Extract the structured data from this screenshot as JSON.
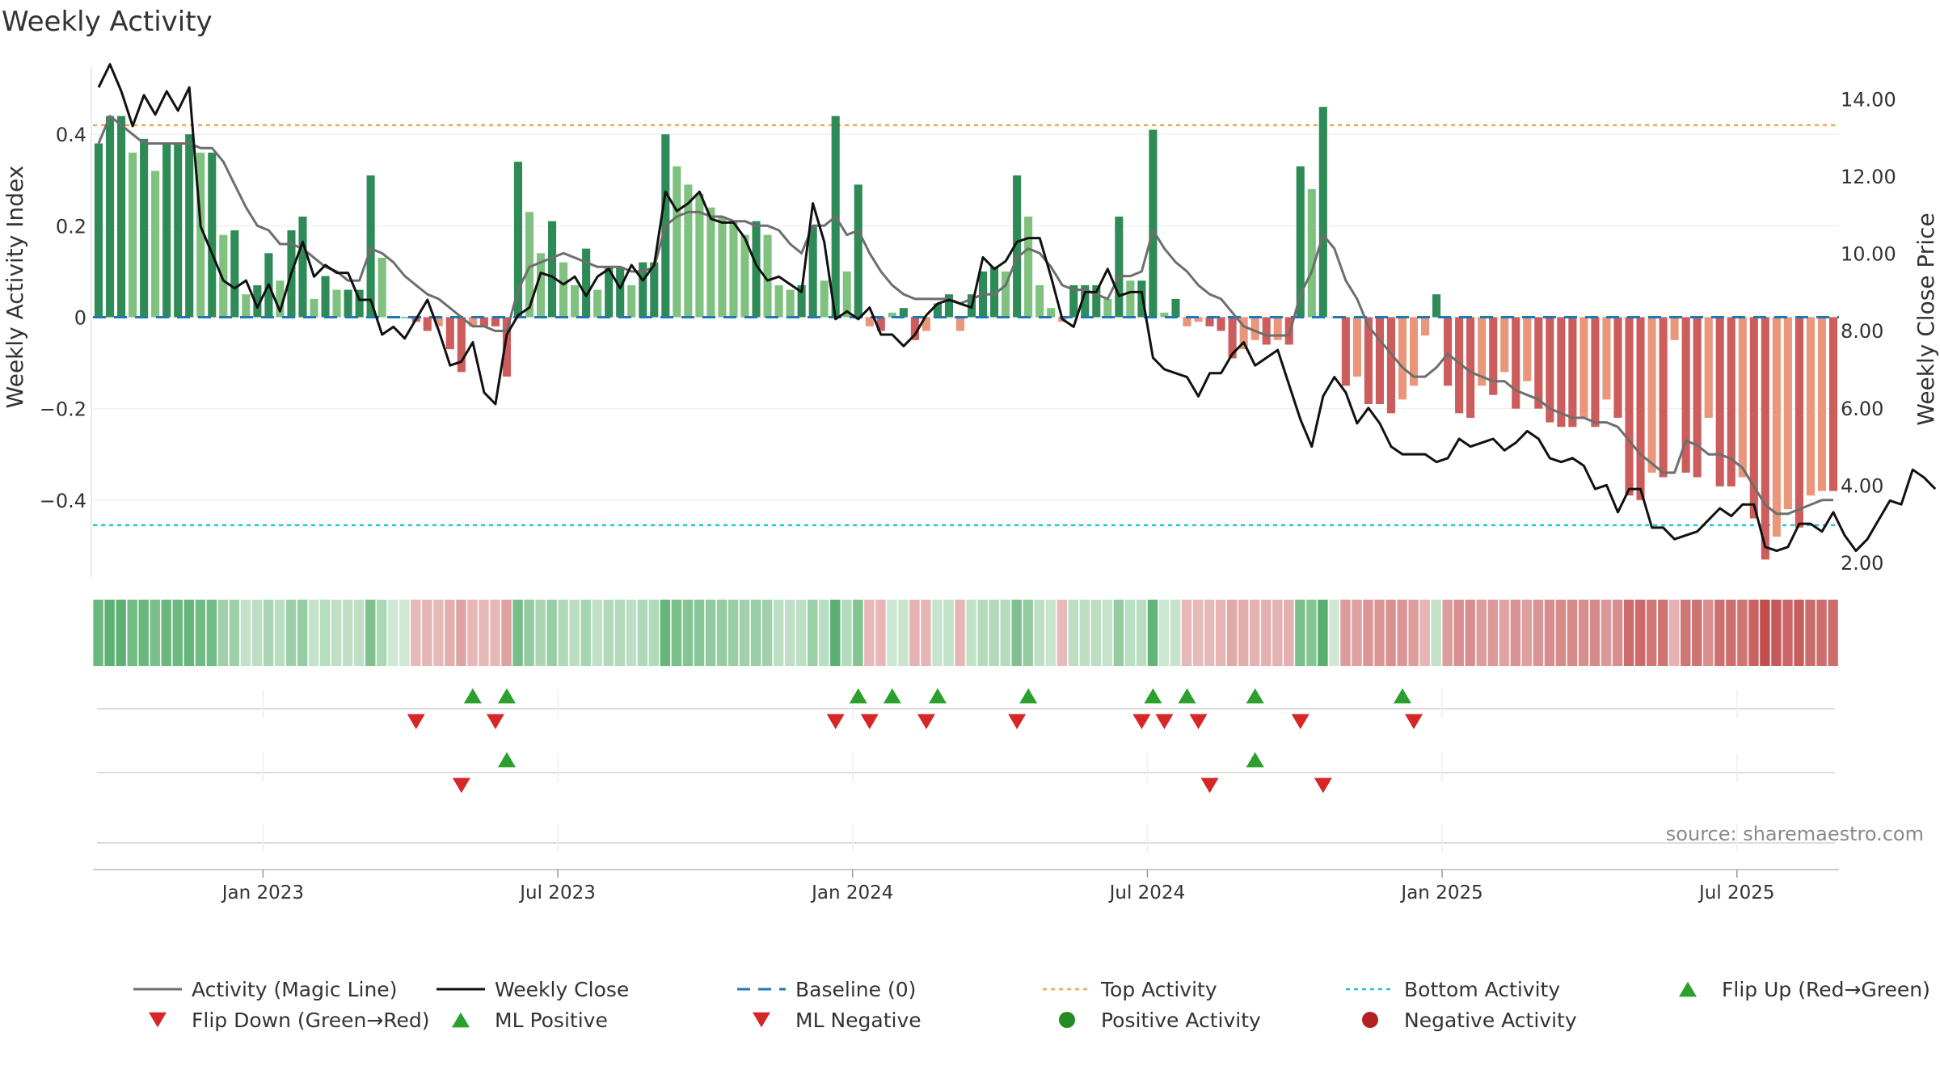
{
  "chart_data": {
    "type": "bar",
    "title": "Weekly Activity",
    "ylabel": "Weekly Activity Index",
    "y2label": "Weekly Close Price",
    "ylim": [
      -0.57,
      0.57
    ],
    "y2lim": [
      1.6,
      15.1
    ],
    "y_ticks": [
      {
        "v": 0.4,
        "label": "0.4"
      },
      {
        "v": 0.2,
        "label": "0.2"
      },
      {
        "v": 0,
        "label": "0"
      },
      {
        "v": -0.2,
        "label": "−0.2"
      },
      {
        "v": -0.4,
        "label": "−0.4"
      }
    ],
    "y2_ticks": [
      {
        "v": 14,
        "label": "14.00"
      },
      {
        "v": 12,
        "label": "12.00"
      },
      {
        "v": 10,
        "label": "10.00"
      },
      {
        "v": 8,
        "label": "8.00"
      },
      {
        "v": 6,
        "label": "6.00"
      },
      {
        "v": 4,
        "label": "4.00"
      },
      {
        "v": 2,
        "label": "2.00"
      }
    ],
    "x_ticks": [
      {
        "week": 14.5,
        "label": "Jan 2023"
      },
      {
        "week": 40.5,
        "label": "Jul 2023"
      },
      {
        "week": 66.5,
        "label": "Jan 2024"
      },
      {
        "week": 92.5,
        "label": "Jul 2024"
      },
      {
        "week": 118.5,
        "label": "Jan 2025"
      },
      {
        "week": 144.5,
        "label": "Jul 2025"
      }
    ],
    "top_activity": 0.42,
    "bottom_activity": -0.455,
    "baseline": 0,
    "activity_index": [
      0.38,
      0.44,
      0.44,
      0.36,
      0.39,
      0.32,
      0.38,
      0.38,
      0.4,
      0.36,
      0.36,
      0.18,
      0.19,
      0.05,
      0.07,
      0.14,
      0.08,
      0.19,
      0.22,
      0.04,
      0.09,
      0.06,
      0.06,
      0.06,
      0.31,
      0.13,
      0,
      0,
      -0.01,
      -0.03,
      -0.02,
      -0.07,
      -0.12,
      -0.02,
      -0.02,
      -0.02,
      -0.13,
      0.34,
      0.23,
      0.14,
      0.21,
      0.12,
      0.07,
      0.15,
      0.06,
      0.11,
      0.11,
      0.07,
      0.12,
      0.12,
      0.4,
      0.33,
      0.29,
      0.27,
      0.24,
      0.22,
      0.21,
      0.18,
      0.21,
      0.18,
      0.07,
      0.06,
      0.07,
      0.2,
      0.08,
      0.44,
      0.1,
      0.29,
      -0.02,
      -0.03,
      0.01,
      0.02,
      -0.05,
      -0.03,
      0.03,
      0.05,
      -0.03,
      0.05,
      0.1,
      0.11,
      0.1,
      0.31,
      0.22,
      0.07,
      0.02,
      -0.01,
      0.07,
      0.07,
      0.07,
      0.04,
      0.22,
      0.08,
      0.08,
      0.41,
      0.01,
      0.04,
      -0.02,
      -0.01,
      -0.02,
      -0.03,
      -0.09,
      -0.07,
      -0.05,
      -0.06,
      -0.05,
      -0.06,
      0.33,
      0.28,
      0.46,
      0,
      -0.15,
      -0.13,
      -0.19,
      -0.19,
      -0.21,
      -0.18,
      -0.15,
      -0.04,
      0.05,
      -0.15,
      -0.21,
      -0.22,
      -0.15,
      -0.17,
      -0.12,
      -0.2,
      -0.14,
      -0.2,
      -0.23,
      -0.24,
      -0.24,
      -0.22,
      -0.24,
      -0.18,
      -0.22,
      -0.39,
      -0.4,
      -0.34,
      -0.35,
      -0.05,
      -0.34,
      -0.35,
      -0.22,
      -0.37,
      -0.37,
      -0.35,
      -0.44,
      -0.53,
      -0.48,
      -0.42,
      -0.46,
      -0.39,
      -0.38,
      -0.38
    ],
    "magic_line": [
      0.38,
      0.44,
      0.42,
      0.4,
      0.38,
      0.38,
      0.38,
      0.38,
      0.38,
      0.37,
      0.37,
      0.34,
      0.29,
      0.24,
      0.2,
      0.19,
      0.16,
      0.16,
      0.15,
      0.13,
      0.11,
      0.1,
      0.08,
      0.08,
      0.15,
      0.14,
      0.12,
      0.09,
      0.07,
      0.05,
      0.04,
      0.02,
      0,
      -0.02,
      -0.02,
      -0.03,
      -0.03,
      0.06,
      0.11,
      0.12,
      0.13,
      0.14,
      0.13,
      0.12,
      0.11,
      0.11,
      0.11,
      0.1,
      0.1,
      0.11,
      0.2,
      0.22,
      0.23,
      0.23,
      0.22,
      0.22,
      0.21,
      0.21,
      0.2,
      0.2,
      0.19,
      0.16,
      0.14,
      0.2,
      0.2,
      0.22,
      0.18,
      0.19,
      0.14,
      0.1,
      0.07,
      0.05,
      0.04,
      0.04,
      0.04,
      0.04,
      0.03,
      0.04,
      0.05,
      0.05,
      0.07,
      0.13,
      0.15,
      0.14,
      0.11,
      0.07,
      0.06,
      0.06,
      0.05,
      0.04,
      0.09,
      0.09,
      0.1,
      0.19,
      0.15,
      0.12,
      0.1,
      0.07,
      0.05,
      0.04,
      0.01,
      -0.02,
      -0.03,
      -0.04,
      -0.04,
      -0.04,
      0.05,
      0.1,
      0.18,
      0.15,
      0.08,
      0.04,
      -0.02,
      -0.05,
      -0.08,
      -0.11,
      -0.13,
      -0.13,
      -0.11,
      -0.08,
      -0.1,
      -0.12,
      -0.13,
      -0.14,
      -0.14,
      -0.16,
      -0.17,
      -0.18,
      -0.2,
      -0.21,
      -0.22,
      -0.22,
      -0.23,
      -0.23,
      -0.24,
      -0.27,
      -0.3,
      -0.32,
      -0.34,
      -0.34,
      -0.27,
      -0.28,
      -0.3,
      -0.3,
      -0.31,
      -0.33,
      -0.37,
      -0.41,
      -0.43,
      -0.43,
      -0.42,
      -0.41,
      -0.4,
      -0.4
    ],
    "weekly_close": [
      14.3,
      14.9,
      14.2,
      13.3,
      14.1,
      13.6,
      14.2,
      13.7,
      14.3,
      10.7,
      10.0,
      9.3,
      9.1,
      9.3,
      8.6,
      9.2,
      8.5,
      9.5,
      10.3,
      9.4,
      9.7,
      9.5,
      9.5,
      8.8,
      8.8,
      7.9,
      8.1,
      7.8,
      8.3,
      8.8,
      8.0,
      7.1,
      7.2,
      7.7,
      6.4,
      6.1,
      7.9,
      8.4,
      8.6,
      9.5,
      9.4,
      9.2,
      9.4,
      8.9,
      9.4,
      9.6,
      9.1,
      9.7,
      9.3,
      9.7,
      11.6,
      11.1,
      11.3,
      11.6,
      10.9,
      10.8,
      10.8,
      10.4,
      9.7,
      9.3,
      9.4,
      9.2,
      9.0,
      11.3,
      10.3,
      8.3,
      8.5,
      8.3,
      8.6,
      7.9,
      7.9,
      7.6,
      7.9,
      8.4,
      8.7,
      8.8,
      8.7,
      8.6,
      9.9,
      9.6,
      9.8,
      10.3,
      10.4,
      10.4,
      9.4,
      8.3,
      8.1,
      9.0,
      9.0,
      9.6,
      8.9,
      9.0,
      9.0,
      7.3,
      7.0,
      6.9,
      6.8,
      6.3,
      6.9,
      6.9,
      7.4,
      7.7,
      7.1,
      7.3,
      7.5,
      6.6,
      5.7,
      5.0,
      6.3,
      6.8,
      6.4,
      5.6,
      6.0,
      5.6,
      5.0,
      4.8,
      4.8,
      4.8,
      4.6,
      4.7,
      5.2,
      5.0,
      5.1,
      5.2,
      4.9,
      5.1,
      5.4,
      5.2,
      4.7,
      4.6,
      4.7,
      4.5,
      3.9,
      4.0,
      3.3,
      3.9,
      3.9,
      2.9,
      2.9,
      2.6,
      2.7,
      2.8,
      3.1,
      3.4,
      3.2,
      3.5,
      3.5,
      2.4,
      2.3,
      2.4,
      3.0,
      3.0,
      2.8,
      3.3,
      2.7,
      2.3,
      2.6,
      3.1,
      3.6,
      3.5,
      4.4,
      4.2,
      3.9
    ],
    "flip_up_weeks": [
      33,
      36,
      67,
      70,
      74,
      82,
      93,
      96,
      102,
      115
    ],
    "flip_down_weeks": [
      28,
      35,
      65,
      68,
      73,
      81,
      92,
      94,
      97,
      106,
      116
    ],
    "ml_positive_weeks": [
      36,
      102
    ],
    "ml_negative_weeks": [
      32,
      98,
      108
    ],
    "positive_activity_weeks": [],
    "negative_activity_weeks": [],
    "legend": [
      {
        "key": "magic",
        "label": "Activity (Magic Line)"
      },
      {
        "key": "close",
        "label": "Weekly Close"
      },
      {
        "key": "baseline",
        "label": "Baseline (0)"
      },
      {
        "key": "top",
        "label": "Top Activity"
      },
      {
        "key": "bottom",
        "label": "Bottom Activity"
      },
      {
        "key": "flipup",
        "label": "Flip Up (Red→Green)"
      },
      {
        "key": "flipdown",
        "label": "Flip Down (Green→Red)"
      },
      {
        "key": "mlpos",
        "label": "ML Positive"
      },
      {
        "key": "mlneg",
        "label": "ML Negative"
      },
      {
        "key": "posact",
        "label": "Positive Activity"
      },
      {
        "key": "negact",
        "label": "Negative Activity"
      }
    ],
    "source": "source: sharemaestro.com",
    "colors": {
      "green_strong": "#2e8b57",
      "green_light": "#7fc17f",
      "red_strong": "#cd5c5c",
      "red_light": "#e9967a",
      "magic": "#6e6e6e",
      "close": "#111111",
      "baseline": "#1f77b4",
      "top": "#f4a460",
      "bottom": "#22c4d8",
      "marker_up": "#2ca02c",
      "marker_down": "#d62728",
      "pos_dot": "#228b22",
      "neg_dot": "#b22222"
    }
  }
}
